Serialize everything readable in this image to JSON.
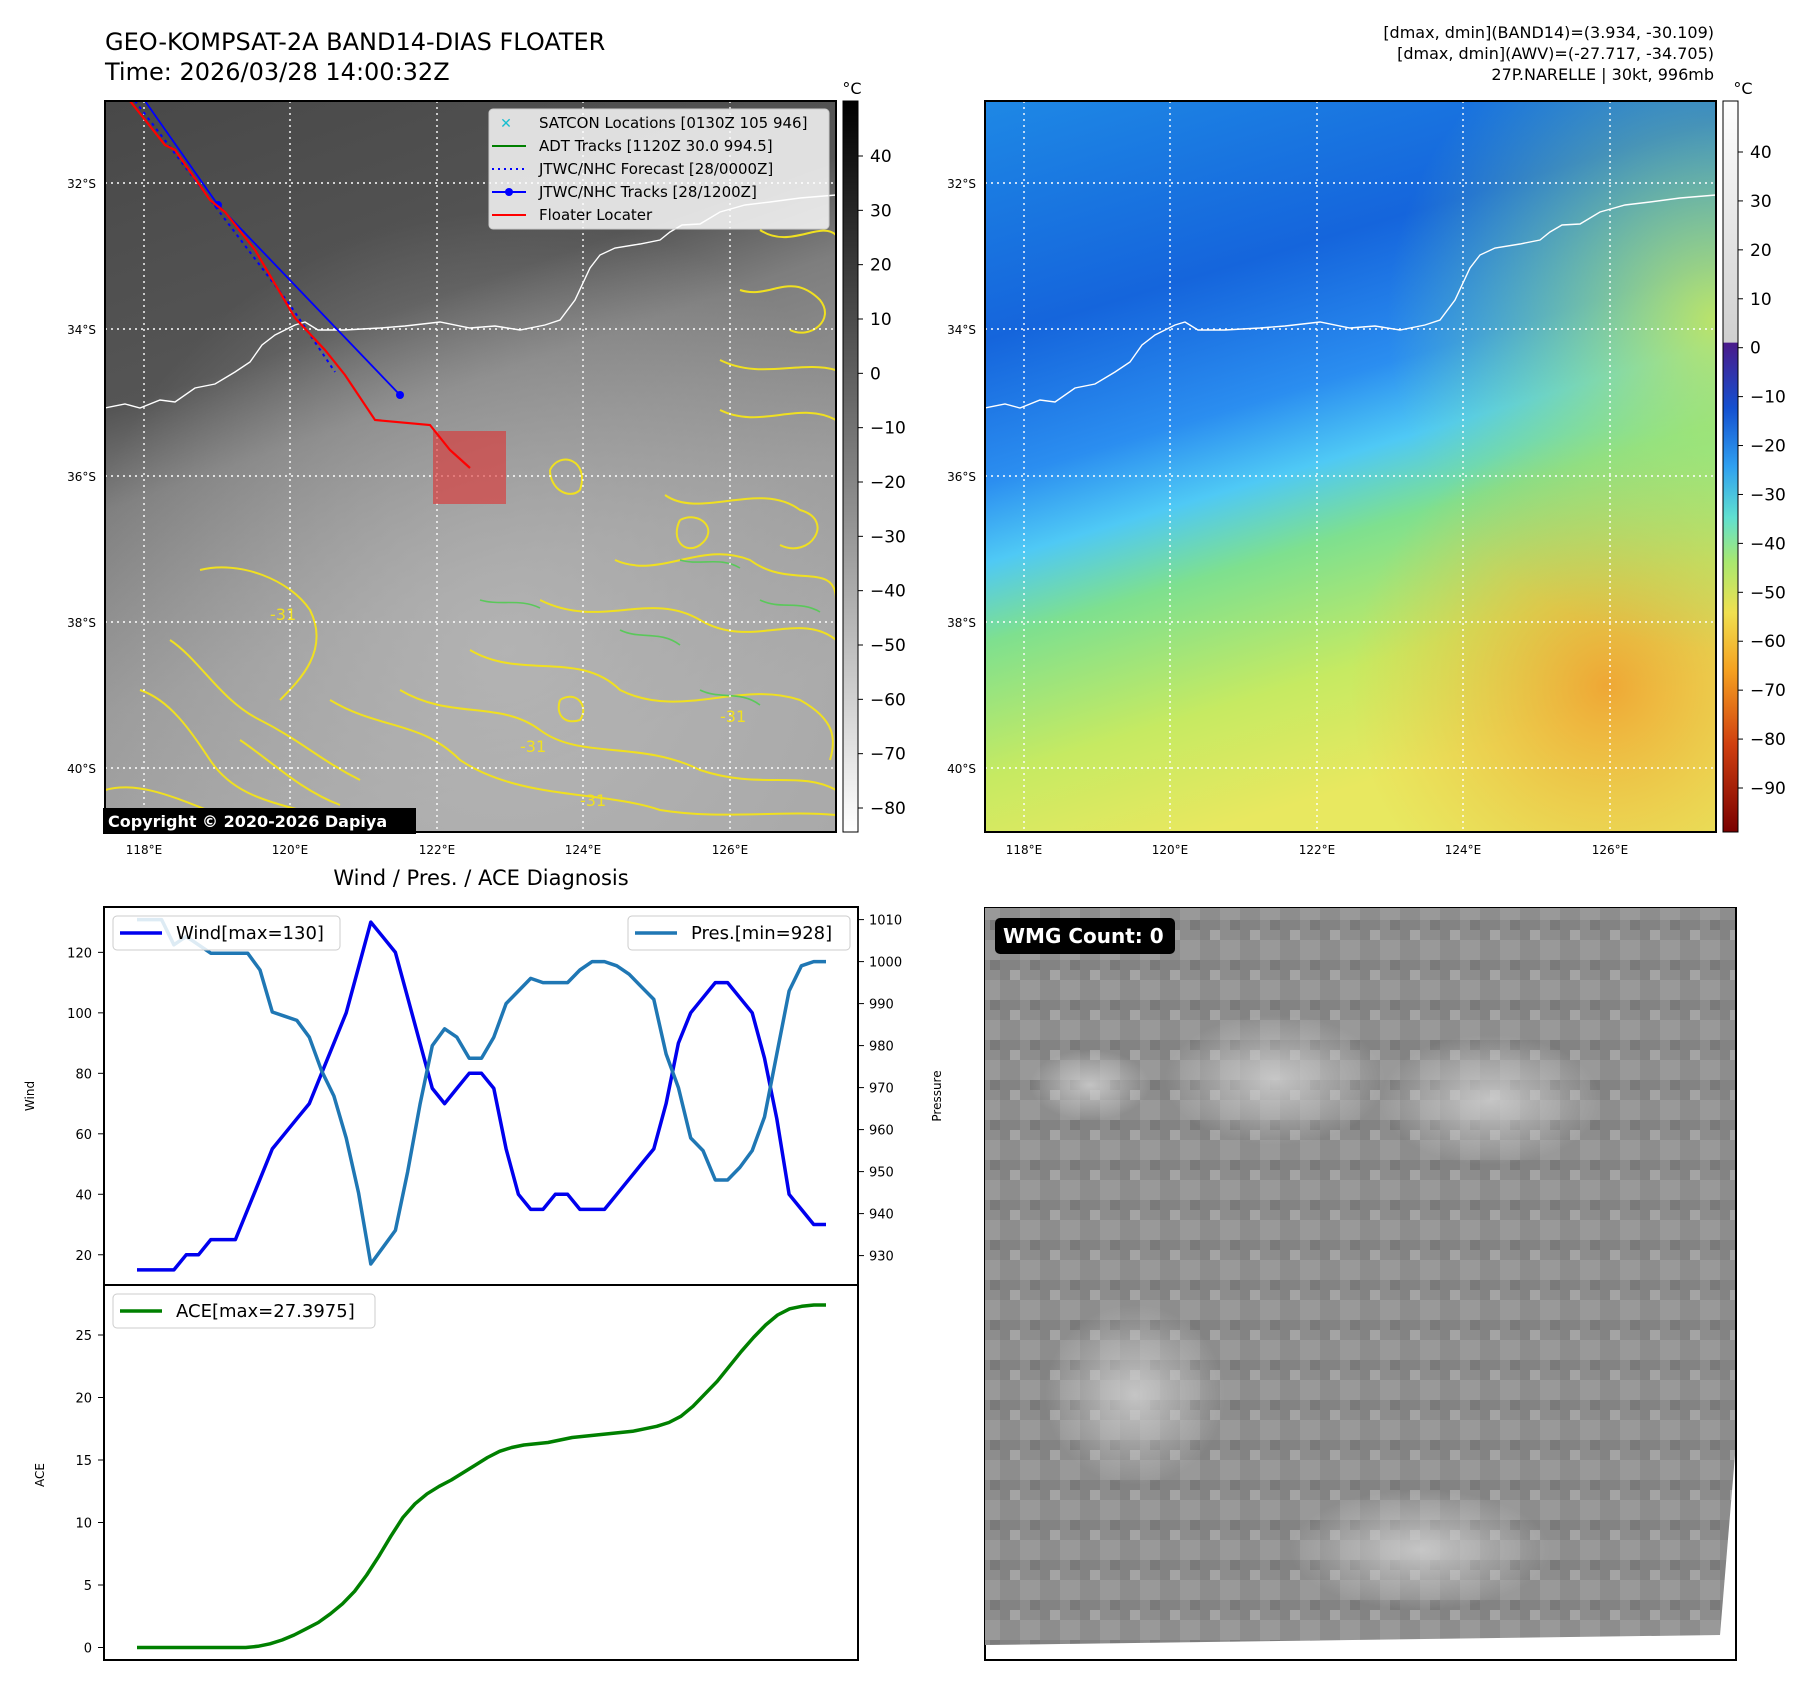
{
  "header": {
    "title_line1": "GEO-KOMPSAT-2A BAND14-DIAS FLOATER",
    "title_line2": "Time: 2026/03/28 14:00:32Z",
    "stats_line1": "[dmax, dmin](BAND14)=(3.934, -30.109)",
    "stats_line2": "[dmax, dmin](AWV)=(-27.717, -34.705)",
    "stats_line3": "27P.NARELLE | 30kt, 996mb"
  },
  "map_axes": {
    "lon_ticks": [
      "118°E",
      "120°E",
      "122°E",
      "124°E",
      "126°E"
    ],
    "lat_ticks": [
      "32°S",
      "34°S",
      "36°S",
      "38°S",
      "40°S"
    ],
    "contour_label": "-31"
  },
  "legend": {
    "items": [
      {
        "label": "SATCON Locations [0130Z 105 946]",
        "color": "#17becf"
      },
      {
        "label": "ADT Tracks [1120Z 30.0 994.5]",
        "color": "#008000"
      },
      {
        "label": "JTWC/NHC Forecast [28/0000Z]",
        "color": "#0000ff"
      },
      {
        "label": "JTWC/NHC Tracks [28/1200Z]",
        "color": "#0000ff"
      },
      {
        "label": "Floater Locater",
        "color": "#ff0000"
      }
    ]
  },
  "copyright": "Copyright © 2020-2026 Dapiya",
  "colorbar_ir": {
    "unit": "°C",
    "ticks": [
      "40",
      "30",
      "20",
      "10",
      "0",
      "−10",
      "−20",
      "−30",
      "−40",
      "−50",
      "−60",
      "−70",
      "−80"
    ]
  },
  "colorbar_wv": {
    "unit": "°C",
    "ticks": [
      "40",
      "30",
      "20",
      "10",
      "0",
      "−10",
      "−20",
      "−30",
      "−40",
      "−50",
      "−60",
      "−70",
      "−80",
      "−90"
    ]
  },
  "wmg_label": "WMG Count: 0",
  "chart_data": [
    {
      "type": "line",
      "title": "Wind / Pres. / ACE Diagnosis",
      "xlabel": "",
      "ylabel": "Wind",
      "ylabel_right": "Pressure",
      "ylim": [
        10,
        135
      ],
      "ylim_right": [
        923,
        1013
      ],
      "yticks": [
        20,
        40,
        60,
        80,
        100,
        120
      ],
      "yticks_right": [
        930,
        940,
        950,
        960,
        970,
        980,
        990,
        1000,
        1010
      ],
      "series": [
        {
          "name": "Wind[max=130]",
          "color": "#0000ee",
          "axis": "left",
          "values": [
            15,
            15,
            15,
            15,
            20,
            20,
            25,
            25,
            25,
            35,
            45,
            55,
            60,
            65,
            70,
            80,
            90,
            100,
            115,
            130,
            125,
            120,
            105,
            90,
            75,
            70,
            75,
            80,
            80,
            75,
            55,
            40,
            35,
            35,
            40,
            40,
            35,
            35,
            35,
            40,
            45,
            50,
            55,
            70,
            90,
            100,
            105,
            110,
            110,
            105,
            100,
            85,
            65,
            40,
            35,
            30,
            30
          ]
        },
        {
          "name": "Pres.[min=928]",
          "color": "#1f77b4",
          "axis": "right",
          "values": [
            1010,
            1010,
            1010,
            1004,
            1006,
            1004,
            1002,
            1002,
            1002,
            1002,
            998,
            988,
            987,
            986,
            982,
            974,
            968,
            958,
            945,
            928,
            932,
            936,
            950,
            966,
            980,
            984,
            982,
            977,
            977,
            982,
            990,
            993,
            996,
            995,
            995,
            995,
            998,
            1000,
            1000,
            999,
            997,
            994,
            991,
            978,
            970,
            958,
            955,
            948,
            948,
            951,
            955,
            963,
            978,
            993,
            999,
            1000,
            1000
          ]
        }
      ]
    },
    {
      "type": "line",
      "title": "",
      "xlabel": "",
      "ylabel": "ACE",
      "ylim": [
        -1,
        29
      ],
      "yticks": [
        0,
        5,
        10,
        15,
        20,
        25
      ],
      "series": [
        {
          "name": "ACE[max=27.3975]",
          "color": "#008000",
          "values": [
            0,
            0,
            0,
            0,
            0,
            0,
            0,
            0,
            0,
            0,
            0.1,
            0.3,
            0.6,
            1.0,
            1.5,
            2.0,
            2.7,
            3.5,
            4.5,
            5.8,
            7.3,
            8.9,
            10.4,
            11.5,
            12.3,
            12.9,
            13.4,
            14.0,
            14.6,
            15.2,
            15.7,
            16.0,
            16.2,
            16.3,
            16.4,
            16.6,
            16.8,
            16.9,
            17.0,
            17.1,
            17.2,
            17.3,
            17.5,
            17.7,
            18.0,
            18.5,
            19.3,
            20.3,
            21.3,
            22.5,
            23.7,
            24.8,
            25.8,
            26.6,
            27.1,
            27.3,
            27.4,
            27.4
          ]
        }
      ]
    }
  ]
}
